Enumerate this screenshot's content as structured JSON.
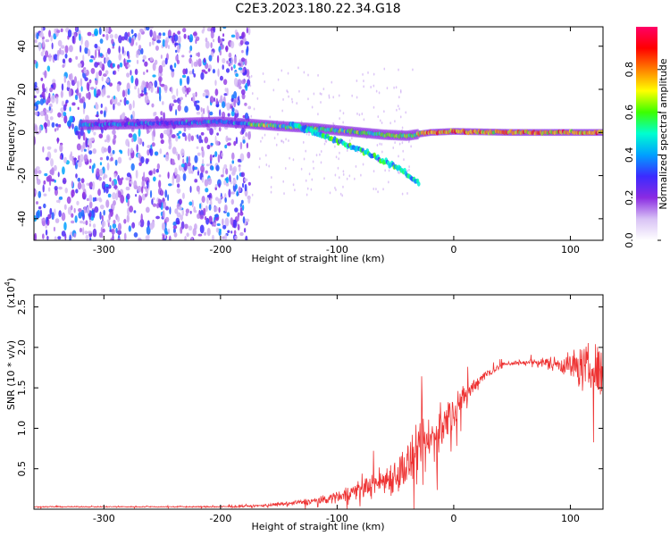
{
  "title": "C2E3.2023.180.22.34.G18",
  "chart_data": [
    {
      "type": "heatmap",
      "xlabel": "Height of straight line (km)",
      "ylabel": "Frequency (Hz)",
      "xlim": [
        -360,
        128
      ],
      "ylim": [
        -50,
        49
      ],
      "xticks": [
        -300,
        -200,
        -100,
        0,
        100
      ],
      "yticks": [
        -40,
        -20,
        0,
        20,
        40
      ],
      "colorbar": {
        "label": "Normalized spectral amplitude",
        "range": [
          0.0,
          1.0
        ],
        "ticks": [
          0.0,
          0.2,
          0.4,
          0.6,
          0.8
        ],
        "colors": [
          "#ffffff",
          "#d8c2f5",
          "#8a2be2",
          "#3b2bff",
          "#00a0ff",
          "#00ffd0",
          "#3cff00",
          "#ffff00",
          "#ff8000",
          "#ff0000",
          "#ff0066"
        ]
      },
      "main_track": [
        {
          "x": -320,
          "y": 3.5
        },
        {
          "x": -260,
          "y": 4
        },
        {
          "x": -200,
          "y": 5
        },
        {
          "x": -175,
          "y": 4
        },
        {
          "x": -150,
          "y": 3
        },
        {
          "x": -120,
          "y": 2
        },
        {
          "x": -100,
          "y": 1
        },
        {
          "x": -80,
          "y": 0
        },
        {
          "x": -60,
          "y": -1
        },
        {
          "x": -40,
          "y": -1.5
        },
        {
          "x": -20,
          "y": 0
        },
        {
          "x": 0,
          "y": 0.5
        },
        {
          "x": 50,
          "y": 0
        },
        {
          "x": 100,
          "y": 0
        },
        {
          "x": 128,
          "y": 0
        }
      ],
      "descending_track": [
        {
          "x": -140,
          "y": 4
        },
        {
          "x": -110,
          "y": -2
        },
        {
          "x": -80,
          "y": -8
        },
        {
          "x": -60,
          "y": -13
        },
        {
          "x": -45,
          "y": -17
        },
        {
          "x": -30,
          "y": -24
        }
      ],
      "noise_region": {
        "x": [
          -360,
          -175
        ],
        "y": [
          -50,
          49
        ]
      }
    },
    {
      "type": "line",
      "xlabel": "Height of straight line (km)",
      "ylabel": "SNR (10 * v/v)",
      "scale_label": "(x10",
      "scale_exponent": "4",
      "xlim": [
        -360,
        128
      ],
      "ylim": [
        0.0,
        2.65
      ],
      "xticks": [
        -300,
        -200,
        -100,
        0,
        100
      ],
      "yticks": [
        0.5,
        1.0,
        1.5,
        2.0,
        2.5
      ],
      "ytick_labels": [
        "0.5",
        "1.0",
        "1.5",
        "2.0",
        "2.5"
      ],
      "color": "#ee3333",
      "envelope": {
        "x": [
          -360,
          -250,
          -200,
          -170,
          -140,
          -110,
          -90,
          -70,
          -50,
          -35,
          -20,
          -5,
          10,
          25,
          45,
          70,
          90,
          110,
          128
        ],
        "mean": [
          0.03,
          0.03,
          0.03,
          0.04,
          0.07,
          0.12,
          0.2,
          0.3,
          0.42,
          0.6,
          0.85,
          1.1,
          1.4,
          1.65,
          1.8,
          1.82,
          1.8,
          1.75,
          1.7
        ],
        "spread": [
          0.01,
          0.01,
          0.015,
          0.02,
          0.04,
          0.08,
          0.15,
          0.22,
          0.35,
          0.5,
          0.5,
          0.4,
          0.2,
          0.1,
          0.05,
          0.06,
          0.15,
          0.4,
          0.55
        ]
      }
    }
  ]
}
